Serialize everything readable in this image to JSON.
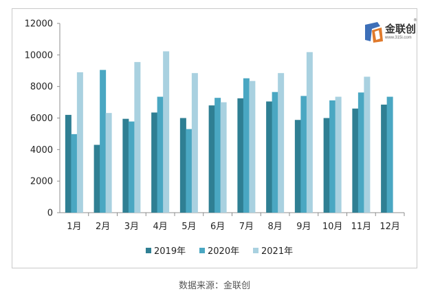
{
  "chart_data": {
    "type": "bar",
    "categories": [
      "1月",
      "2月",
      "3月",
      "4月",
      "5月",
      "6月",
      "7月",
      "8月",
      "9月",
      "10月",
      "11月",
      "12月"
    ],
    "series": [
      {
        "name": "2019年",
        "color": "#2f7f93",
        "values": [
          6200,
          4300,
          5950,
          6350,
          6000,
          6800,
          7250,
          7050,
          5880,
          6000,
          6600,
          6850
        ]
      },
      {
        "name": "2020年",
        "color": "#4aa7c2",
        "values": [
          4980,
          9050,
          5780,
          7350,
          5300,
          7280,
          8520,
          7650,
          7400,
          7120,
          7620,
          7350
        ]
      },
      {
        "name": "2021年",
        "color": "#a9d1e0",
        "values": [
          8900,
          6320,
          9550,
          10230,
          8850,
          7000,
          8350,
          8850,
          10180,
          7350,
          8620,
          null
        ]
      }
    ],
    "ylim": [
      0,
      12000
    ],
    "yticks": [
      0,
      2000,
      4000,
      6000,
      8000,
      10000,
      12000
    ],
    "legend": "bottom",
    "grid": false
  },
  "logo": {
    "name": "金联创",
    "url": "www.315i.com",
    "reg": "®"
  },
  "source": "数据来源：金联创"
}
